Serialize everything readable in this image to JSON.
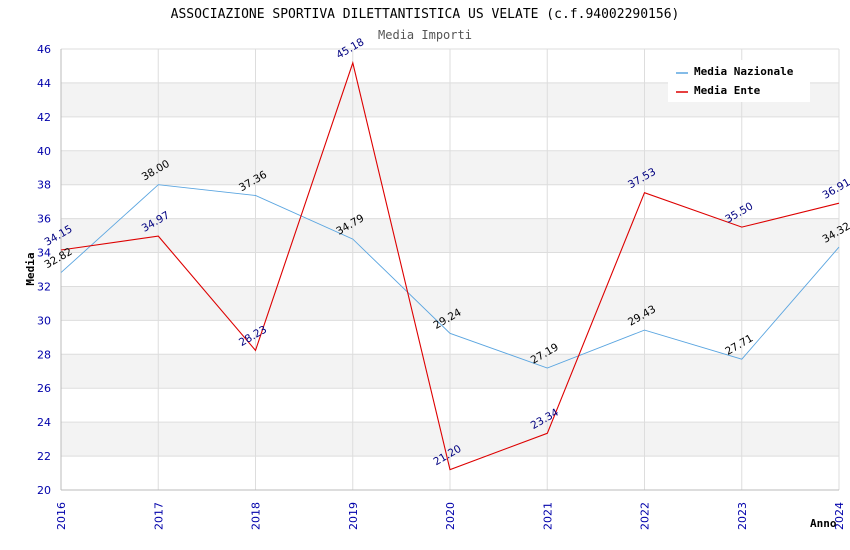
{
  "chart_data": {
    "type": "line",
    "title": "ASSOCIAZIONE SPORTIVA DILETTANTISTICA US VELATE (c.f.94002290156)",
    "subtitle": "Media Importi",
    "xlabel": "Anno",
    "ylabel": "Media",
    "ylim": [
      20,
      46
    ],
    "ytick_step": 2,
    "grid": true,
    "legend_position": "top-right",
    "categories": [
      "2016",
      "2017",
      "2018",
      "2019",
      "2020",
      "2021",
      "2022",
      "2023",
      "2024"
    ],
    "series": [
      {
        "name": "Media Nazionale",
        "color": "#5aa5e0",
        "label_color": "#000000",
        "values": [
          32.82,
          38.0,
          37.36,
          34.79,
          29.24,
          27.19,
          29.43,
          27.71,
          34.32
        ],
        "labels": [
          "32.82",
          "38.00",
          "37.36",
          "34.79",
          "29.24",
          "27.19",
          "29.43",
          "27.71",
          "34.32"
        ]
      },
      {
        "name": "Media Ente",
        "color": "#dd0000",
        "label_color": "#000080",
        "values": [
          34.15,
          34.97,
          28.23,
          45.18,
          21.2,
          23.34,
          37.53,
          35.5,
          36.91
        ],
        "labels": [
          "34.15",
          "34.97",
          "28.23",
          "45.18",
          "21.20",
          "23.34",
          "37.53",
          "35.50",
          "36.91"
        ]
      }
    ]
  }
}
